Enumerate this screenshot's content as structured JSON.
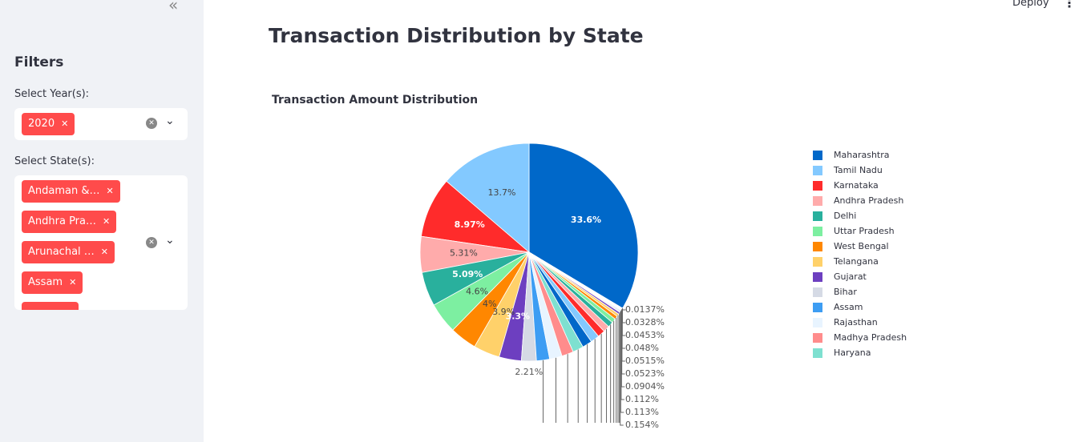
{
  "header": {
    "deploy": "Deploy"
  },
  "sidebar": {
    "title": "Filters",
    "year_label": "Select Year(s):",
    "years": [
      "2020"
    ],
    "state_label": "Select State(s):",
    "states": [
      "Andaman &…",
      "Andhra Pra…",
      "Arunachal …",
      "Assam"
    ]
  },
  "page_title": "Transaction Distribution by State",
  "chart_data": {
    "type": "pie",
    "title": "Transaction Amount Distribution",
    "categories": [
      "Maharashtra",
      "Tamil Nadu",
      "Karnataka",
      "Andhra Pradesh",
      "Delhi",
      "Uttar Pradesh",
      "West Bengal",
      "Telangana",
      "Gujarat",
      "Bihar",
      "Assam",
      "Rajasthan",
      "Madhya Pradesh",
      "Haryana",
      null,
      null,
      null,
      null,
      null,
      null,
      null,
      null,
      null,
      null,
      null,
      null,
      null,
      null,
      null,
      null,
      null,
      null,
      null
    ],
    "values": [
      33.6,
      13.7,
      8.97,
      5.31,
      5.09,
      4.6,
      4,
      3.9,
      3.3,
      2.21,
      1.95,
      1.85,
      1.75,
      1.6,
      1.45,
      1.3,
      1.1,
      0.95,
      0.8,
      0.65,
      0.5,
      0.4,
      0.3,
      0.154,
      0.113,
      0.112,
      0.0904,
      0.0523,
      0.0515,
      0.048,
      0.0453,
      0.0328,
      0.0137
    ],
    "value_labels": [
      "33.6%",
      "13.7%",
      "8.97%",
      "5.31%",
      "5.09%",
      "4.6%",
      "4%",
      "3.9%",
      "3.3%",
      "2.21%",
      null,
      null,
      null,
      null,
      null,
      null,
      null,
      null,
      null,
      null,
      null,
      null,
      null,
      "0.154%",
      "0.113%",
      "0.112%",
      "0.0904%",
      "0.0523%",
      "0.0515%",
      "0.048%",
      "0.0453%",
      "0.0328%",
      "0.0137%"
    ],
    "colors": [
      "#0068c9",
      "#83c9ff",
      "#ff2b2b",
      "#ffabab",
      "#29b09d",
      "#7defa1",
      "#ff8700",
      "#ffd16a",
      "#6d3fc0",
      "#d5dae5",
      "#3d9df3",
      "#e8f4ff",
      "#ff8c8c",
      "#7ee0d0",
      "#0068c9",
      "#83c9ff",
      "#ff2b2b",
      "#ffabab",
      "#29b09d",
      "#7defa1",
      "#ff8700",
      "#ffd16a",
      "#6d3fc0",
      "#d5dae5",
      "#0068c9",
      "#83c9ff",
      "#ff2b2b",
      "#ffabab",
      "#29b09d",
      "#7defa1",
      "#ff8700",
      "#ffd16a",
      "#6d3fc0"
    ],
    "legend": "right"
  }
}
